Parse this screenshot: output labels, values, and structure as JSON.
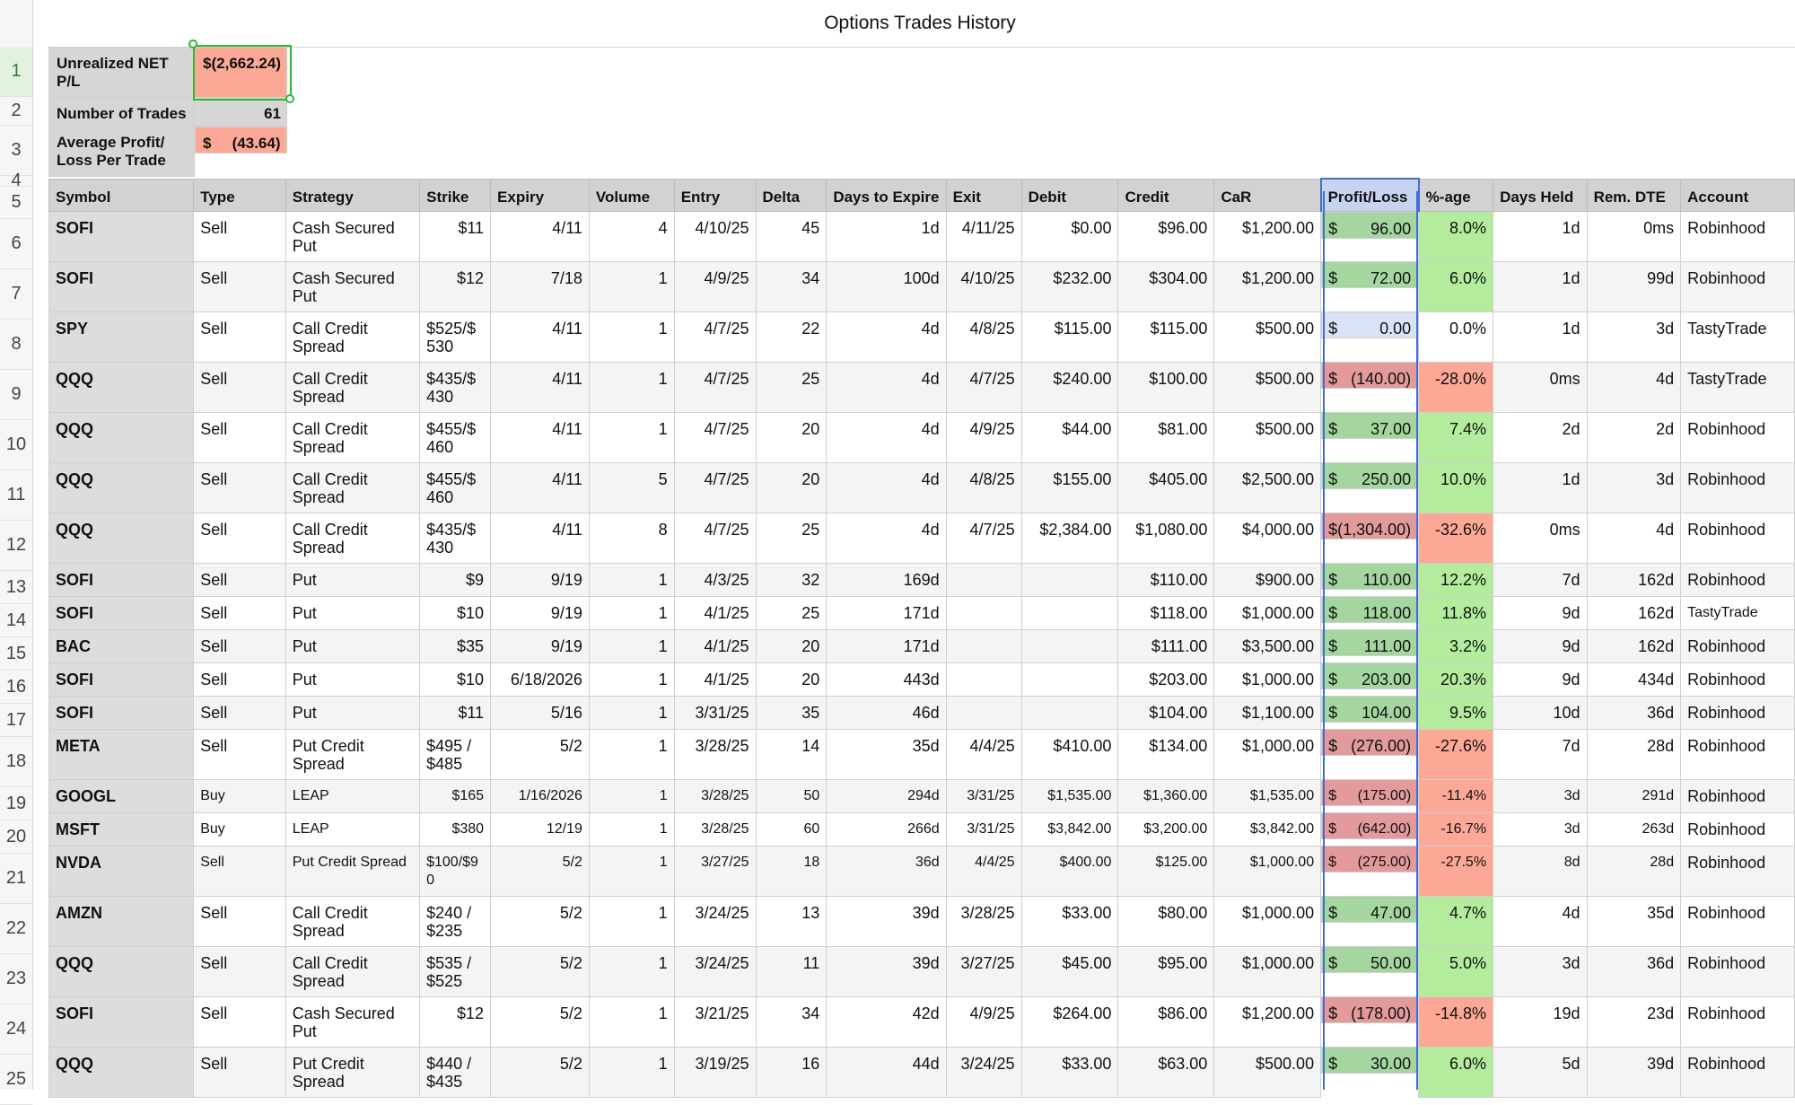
{
  "title": "Options Trades History",
  "row_numbers": [
    "1",
    "2",
    "3",
    "4",
    "5",
    "6",
    "7",
    "8",
    "9",
    "10",
    "11",
    "12",
    "13",
    "14",
    "15",
    "16",
    "17",
    "18",
    "19",
    "20",
    "21",
    "22",
    "23",
    "24",
    "25"
  ],
  "summary": [
    {
      "label": "Unrealized NET P/L",
      "value": "$(2,662.24)",
      "style": "neg"
    },
    {
      "label": "Number of Trades",
      "value": "61",
      "style": "plain"
    },
    {
      "label": "Average Profit/ Loss Per Trade",
      "currency": "$",
      "value": "(43.64)",
      "style": "neg"
    }
  ],
  "columns": [
    "Symbol",
    "Type",
    "Strategy",
    "Strike",
    "Expiry",
    "Volume",
    "Entry",
    "Delta",
    "Days to Expire",
    "Exit",
    "Debit",
    "Credit",
    "CaR",
    "Profit/Loss",
    "%-age",
    "Days Held",
    "Rem. DTE",
    "Account"
  ],
  "rows": [
    {
      "symbol": "SOFI",
      "type": "Sell",
      "strategy": "Cash Secured Put",
      "strike": "$11",
      "expiry": "4/11",
      "volume": "4",
      "entry": "4/10/25",
      "delta": "45",
      "dte": "1d",
      "exit": "4/11/25",
      "debit": "$0.00",
      "credit": "$96.00",
      "car": "$1,200.00",
      "pl": "96.00",
      "pct": "8.0%",
      "held": "1d",
      "rem": "0ms",
      "account": "Robinhood",
      "sign": "pos"
    },
    {
      "symbol": "SOFI",
      "type": "Sell",
      "strategy": "Cash Secured Put",
      "strike": "$12",
      "expiry": "7/18",
      "volume": "1",
      "entry": "4/9/25",
      "delta": "34",
      "dte": "100d",
      "exit": "4/10/25",
      "debit": "$232.00",
      "credit": "$304.00",
      "car": "$1,200.00",
      "pl": "72.00",
      "pct": "6.0%",
      "held": "1d",
      "rem": "99d",
      "account": "Robinhood",
      "sign": "pos"
    },
    {
      "symbol": "SPY",
      "type": "Sell",
      "strategy": "Call Credit Spread",
      "strike": "$525/$ 530",
      "expiry": "4/11",
      "volume": "1",
      "entry": "4/7/25",
      "delta": "22",
      "dte": "4d",
      "exit": "4/8/25",
      "debit": "$115.00",
      "credit": "$115.00",
      "car": "$500.00",
      "pl": "0.00",
      "pct": "0.0%",
      "held": "1d",
      "rem": "3d",
      "account": "TastyTrade",
      "sign": "zero"
    },
    {
      "symbol": "QQQ",
      "type": "Sell",
      "strategy": "Call Credit Spread",
      "strike": "$435/$ 430",
      "expiry": "4/11",
      "volume": "1",
      "entry": "4/7/25",
      "delta": "25",
      "dte": "4d",
      "exit": "4/7/25",
      "debit": "$240.00",
      "credit": "$100.00",
      "car": "$500.00",
      "pl": "(140.00)",
      "pct": "-28.0%",
      "held": "0ms",
      "rem": "4d",
      "account": "TastyTrade",
      "sign": "neg"
    },
    {
      "symbol": "QQQ",
      "type": "Sell",
      "strategy": "Call Credit Spread",
      "strike": "$455/$ 460",
      "expiry": "4/11",
      "volume": "1",
      "entry": "4/7/25",
      "delta": "20",
      "dte": "4d",
      "exit": "4/9/25",
      "debit": "$44.00",
      "credit": "$81.00",
      "car": "$500.00",
      "pl": "37.00",
      "pct": "7.4%",
      "held": "2d",
      "rem": "2d",
      "account": "Robinhood",
      "sign": "pos"
    },
    {
      "symbol": "QQQ",
      "type": "Sell",
      "strategy": "Call Credit Spread",
      "strike": "$455/$ 460",
      "expiry": "4/11",
      "volume": "5",
      "entry": "4/7/25",
      "delta": "20",
      "dte": "4d",
      "exit": "4/8/25",
      "debit": "$155.00",
      "credit": "$405.00",
      "car": "$2,500.00",
      "pl": "250.00",
      "pct": "10.0%",
      "held": "1d",
      "rem": "3d",
      "account": "Robinhood",
      "sign": "pos"
    },
    {
      "symbol": "QQQ",
      "type": "Sell",
      "strategy": "Call Credit Spread",
      "strike": "$435/$ 430",
      "expiry": "4/11",
      "volume": "8",
      "entry": "4/7/25",
      "delta": "25",
      "dte": "4d",
      "exit": "4/7/25",
      "debit": "$2,384.00",
      "credit": "$1,080.00",
      "car": "$4,000.00",
      "pl": "(1,304.00)",
      "pct": "-32.6%",
      "held": "0ms",
      "rem": "4d",
      "account": "Robinhood",
      "sign": "neg",
      "nospace": true
    },
    {
      "symbol": "SOFI",
      "type": "Sell",
      "strategy": "Put",
      "strike": "$9",
      "expiry": "9/19",
      "volume": "1",
      "entry": "4/3/25",
      "delta": "32",
      "dte": "169d",
      "exit": "",
      "debit": "",
      "credit": "$110.00",
      "car": "$900.00",
      "pl": "110.00",
      "pct": "12.2%",
      "held": "7d",
      "rem": "162d",
      "account": "Robinhood",
      "sign": "pos",
      "short": true
    },
    {
      "symbol": "SOFI",
      "type": "Sell",
      "strategy": "Put",
      "strike": "$10",
      "expiry": "9/19",
      "volume": "1",
      "entry": "4/1/25",
      "delta": "25",
      "dte": "171d",
      "exit": "",
      "debit": "",
      "credit": "$118.00",
      "car": "$1,000.00",
      "pl": "118.00",
      "pct": "11.8%",
      "held": "9d",
      "rem": "162d",
      "account": "TastyTrade",
      "sign": "pos",
      "short": true
    },
    {
      "symbol": "BAC",
      "type": "Sell",
      "strategy": "Put",
      "strike": "$35",
      "expiry": "9/19",
      "volume": "1",
      "entry": "4/1/25",
      "delta": "20",
      "dte": "171d",
      "exit": "",
      "debit": "",
      "credit": "$111.00",
      "car": "$3,500.00",
      "pl": "111.00",
      "pct": "3.2%",
      "held": "9d",
      "rem": "162d",
      "account": "Robinhood",
      "sign": "pos",
      "short": true
    },
    {
      "symbol": "SOFI",
      "type": "Sell",
      "strategy": "Put",
      "strike": "$10",
      "expiry": "6/18/2026",
      "volume": "1",
      "entry": "4/1/25",
      "delta": "20",
      "dte": "443d",
      "exit": "",
      "debit": "",
      "credit": "$203.00",
      "car": "$1,000.00",
      "pl": "203.00",
      "pct": "20.3%",
      "held": "9d",
      "rem": "434d",
      "account": "Robinhood",
      "sign": "pos",
      "short": true
    },
    {
      "symbol": "SOFI",
      "type": "Sell",
      "strategy": "Put",
      "strike": "$11",
      "expiry": "5/16",
      "volume": "1",
      "entry": "3/31/25",
      "delta": "35",
      "dte": "46d",
      "exit": "",
      "debit": "",
      "credit": "$104.00",
      "car": "$1,100.00",
      "pl": "104.00",
      "pct": "9.5%",
      "held": "10d",
      "rem": "36d",
      "account": "Robinhood",
      "sign": "pos",
      "short": true
    },
    {
      "symbol": "META",
      "type": "Sell",
      "strategy": "Put Credit Spread",
      "strike": "$495 / $485",
      "expiry": "5/2",
      "volume": "1",
      "entry": "3/28/25",
      "delta": "14",
      "dte": "35d",
      "exit": "4/4/25",
      "debit": "$410.00",
      "credit": "$134.00",
      "car": "$1,000.00",
      "pl": "(276.00)",
      "pct": "-27.6%",
      "held": "7d",
      "rem": "28d",
      "account": "Robinhood",
      "sign": "neg"
    },
    {
      "symbol": "GOOGL",
      "type": "Buy",
      "strategy": "LEAP",
      "strike": "$165",
      "expiry": "1/16/2026",
      "volume": "1",
      "entry": "3/28/25",
      "delta": "50",
      "dte": "294d",
      "exit": "3/31/25",
      "debit": "$1,535.00",
      "credit": "$1,360.00",
      "car": "$1,535.00",
      "pl": "(175.00)",
      "pct": "-11.4%",
      "held": "3d",
      "rem": "291d",
      "account": "Robinhood",
      "sign": "neg",
      "short": true,
      "small": true
    },
    {
      "symbol": "MSFT",
      "type": "Buy",
      "strategy": "LEAP",
      "strike": "$380",
      "expiry": "12/19",
      "volume": "1",
      "entry": "3/28/25",
      "delta": "60",
      "dte": "266d",
      "exit": "3/31/25",
      "debit": "$3,842.00",
      "credit": "$3,200.00",
      "car": "$3,842.00",
      "pl": "(642.00)",
      "pct": "-16.7%",
      "held": "3d",
      "rem": "263d",
      "account": "Robinhood",
      "sign": "neg",
      "short": true,
      "small": true
    },
    {
      "symbol": "NVDA",
      "type": "Sell",
      "strategy": "Put Credit Spread",
      "strike": "$100/$9 0",
      "expiry": "5/2",
      "volume": "1",
      "entry": "3/27/25",
      "delta": "18",
      "dte": "36d",
      "exit": "4/4/25",
      "debit": "$400.00",
      "credit": "$125.00",
      "car": "$1,000.00",
      "pl": "(275.00)",
      "pct": "-27.5%",
      "held": "8d",
      "rem": "28d",
      "account": "Robinhood",
      "sign": "neg",
      "small": true
    },
    {
      "symbol": "AMZN",
      "type": "Sell",
      "strategy": "Call Credit Spread",
      "strike": "$240 / $235",
      "expiry": "5/2",
      "volume": "1",
      "entry": "3/24/25",
      "delta": "13",
      "dte": "39d",
      "exit": "3/28/25",
      "debit": "$33.00",
      "credit": "$80.00",
      "car": "$1,000.00",
      "pl": "47.00",
      "pct": "4.7%",
      "held": "4d",
      "rem": "35d",
      "account": "Robinhood",
      "sign": "pos"
    },
    {
      "symbol": "QQQ",
      "type": "Sell",
      "strategy": "Call Credit Spread",
      "strike": "$535 / $525",
      "expiry": "5/2",
      "volume": "1",
      "entry": "3/24/25",
      "delta": "11",
      "dte": "39d",
      "exit": "3/27/25",
      "debit": "$45.00",
      "credit": "$95.00",
      "car": "$1,000.00",
      "pl": "50.00",
      "pct": "5.0%",
      "held": "3d",
      "rem": "36d",
      "account": "Robinhood",
      "sign": "pos"
    },
    {
      "symbol": "SOFI",
      "type": "Sell",
      "strategy": "Cash Secured Put",
      "strike": "$12",
      "expiry": "5/2",
      "volume": "1",
      "entry": "3/21/25",
      "delta": "34",
      "dte": "42d",
      "exit": "4/9/25",
      "debit": "$264.00",
      "credit": "$86.00",
      "car": "$1,200.00",
      "pl": "(178.00)",
      "pct": "-14.8%",
      "held": "19d",
      "rem": "23d",
      "account": "Robinhood",
      "sign": "neg"
    },
    {
      "symbol": "QQQ",
      "type": "Sell",
      "strategy": "Put Credit Spread",
      "strike": "$440 / $435",
      "expiry": "5/2",
      "volume": "1",
      "entry": "3/19/25",
      "delta": "16",
      "dte": "44d",
      "exit": "3/24/25",
      "debit": "$33.00",
      "credit": "$63.00",
      "car": "$500.00",
      "pl": "30.00",
      "pct": "6.0%",
      "held": "5d",
      "rem": "39d",
      "account": "Robinhood",
      "sign": "pos"
    }
  ],
  "colors": {
    "positive": "#a6d6a0",
    "negative": "#e29a9a",
    "selection": "#2eb82e",
    "column_select": "#3f6fd6"
  }
}
